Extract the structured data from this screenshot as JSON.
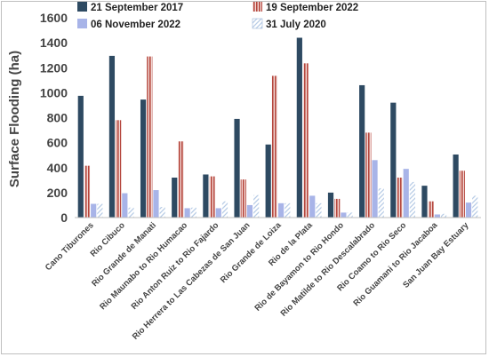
{
  "chart_data": {
    "type": "bar",
    "ylabel": "Surface Flooding (ha)",
    "xlabel": "",
    "ylim": [
      0,
      1600
    ],
    "yticks": [
      0,
      200,
      400,
      600,
      800,
      1000,
      1200,
      1400,
      1600
    ],
    "grid": false,
    "legend_position": "top",
    "categories": [
      "Cano Tiburones",
      "Rio Cibuco",
      "Rio Grande de Manati",
      "Rio Maunabo to Rio Humacao",
      "Rio Anton Ruiz to Rio Fajardo",
      "Rio Herrera to Las Cabezas de San Juan",
      "Rio Grande de Loiza",
      "Rio de la Plata",
      "Rio de Bayamon to Rio Hondo",
      "Rio Matilde to Rio Descalabrado",
      "Rio Coamo to Rio Seco",
      "Rio Guamani to Rio Jacaboa",
      "San Juan Bay Estuary"
    ],
    "series": [
      {
        "name": "21 September 2017",
        "color": "#2e4a62",
        "pattern": "solid",
        "values": [
          975,
          1295,
          945,
          320,
          345,
          790,
          585,
          1440,
          200,
          1060,
          920,
          255,
          505
        ]
      },
      {
        "name": "19 September 2022",
        "color": "#b5473e",
        "pattern": "stripes",
        "values": [
          415,
          780,
          1290,
          610,
          330,
          305,
          1135,
          1235,
          150,
          680,
          320,
          130,
          375
        ]
      },
      {
        "name": "06 November 2022",
        "color": "#a8b4e8",
        "pattern": "solid",
        "values": [
          110,
          195,
          220,
          75,
          75,
          100,
          115,
          175,
          40,
          460,
          390,
          25,
          120
        ]
      },
      {
        "name": "31 July 2020",
        "color": "#b7cce6",
        "pattern": "hatch",
        "values": [
          110,
          80,
          85,
          80,
          130,
          180,
          115,
          115,
          40,
          235,
          285,
          30,
          175
        ]
      }
    ]
  }
}
